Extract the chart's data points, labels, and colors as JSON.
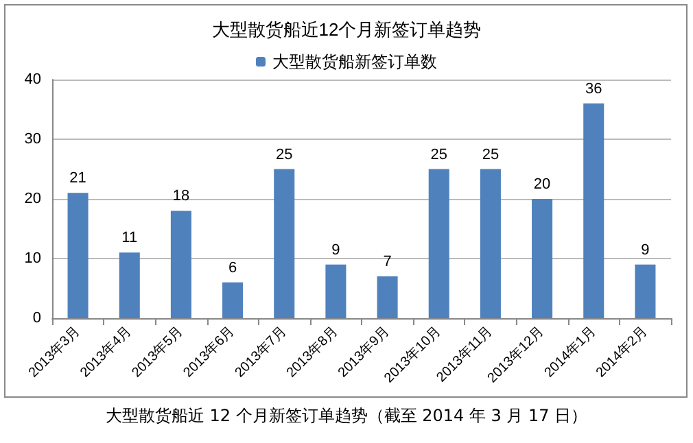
{
  "chart_data": {
    "type": "bar",
    "title": "大型散货船近12个月新签订单趋势",
    "categories": [
      "2013年3月",
      "2013年4月",
      "2013年5月",
      "2013年6月",
      "2013年7月",
      "2013年8月",
      "2013年9月",
      "2013年10月",
      "2013年11月",
      "2013年12月",
      "2014年1月",
      "2014年2月"
    ],
    "series": [
      {
        "name": "大型散货船新签订单数",
        "color": "#4f81bd",
        "values": [
          21,
          11,
          18,
          6,
          25,
          9,
          7,
          25,
          25,
          20,
          36,
          9
        ]
      }
    ],
    "ylim": [
      0,
      40
    ],
    "yticks": [
      0,
      10,
      20,
      30,
      40
    ],
    "grid": "y",
    "legend": "top",
    "data_labels": true,
    "annotations": [
      "大型散货船近 12 个月新签订单趋势（截至 2014 年 3 月 17 日）"
    ]
  }
}
